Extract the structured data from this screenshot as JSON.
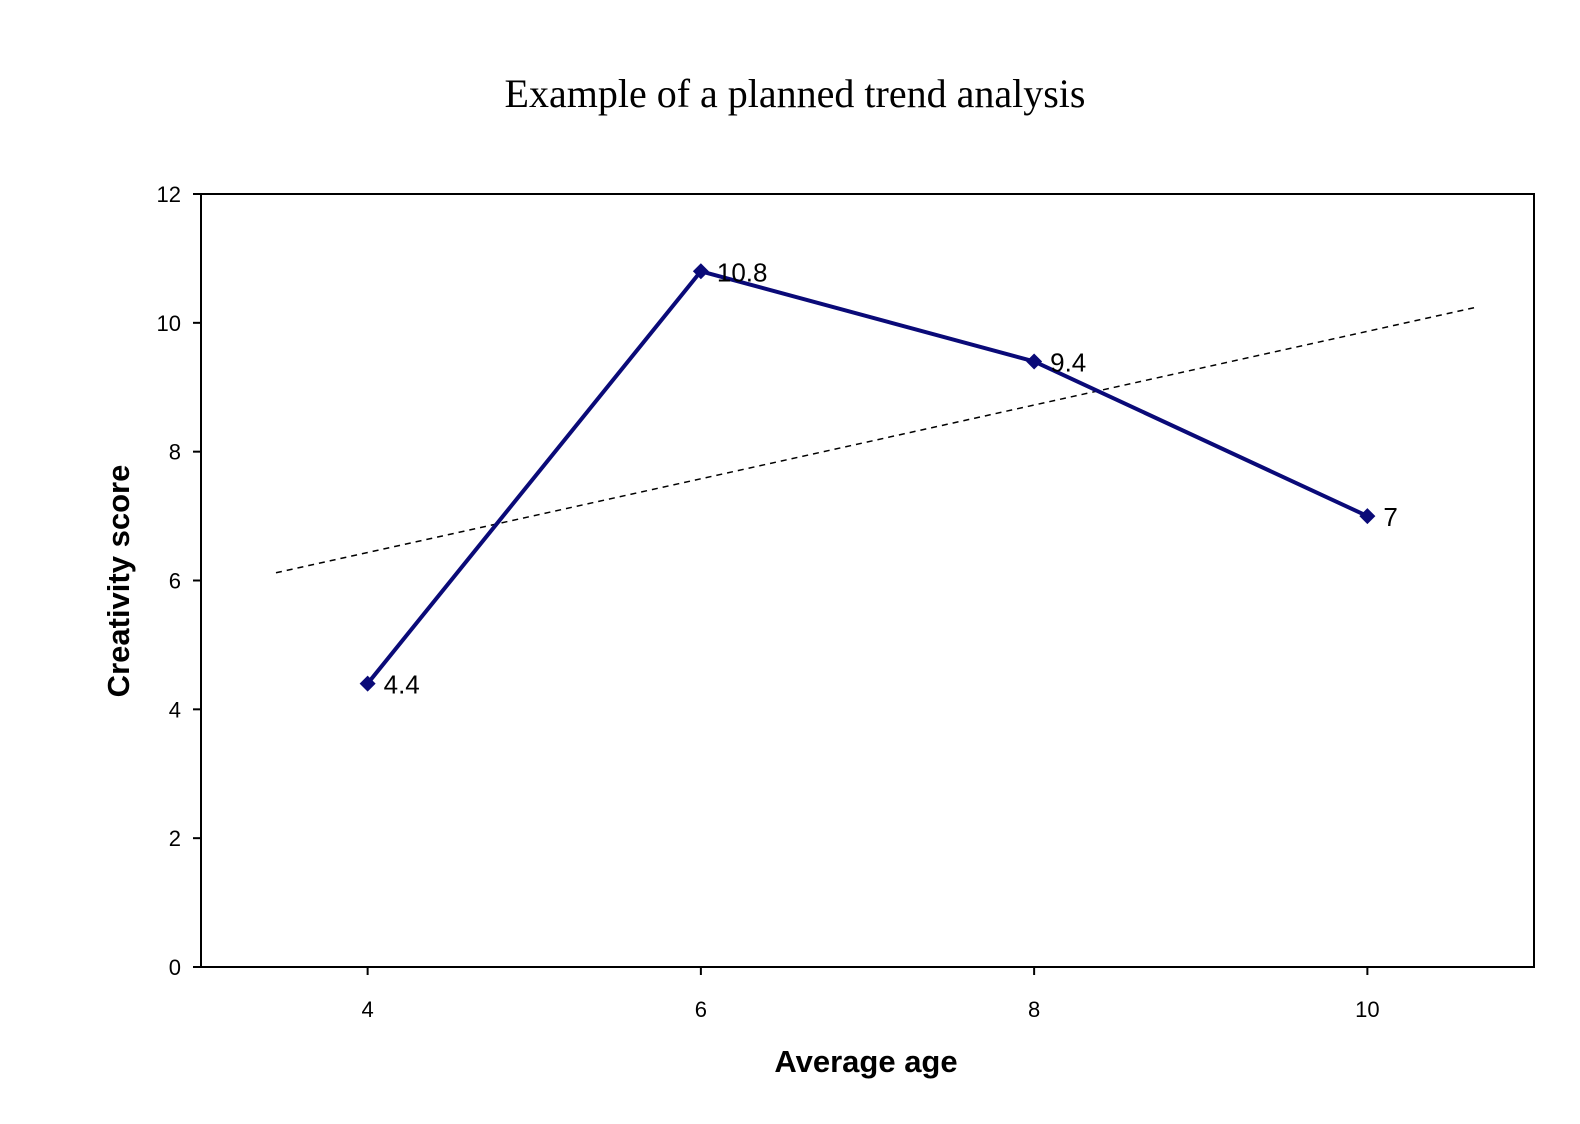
{
  "chart_data": {
    "type": "line",
    "title": "Example of a planned trend analysis",
    "xlabel": "Average age",
    "ylabel": "Creativity score",
    "x": [
      4,
      6,
      8,
      10
    ],
    "xticks": [
      "4",
      "6",
      "8",
      "10"
    ],
    "xlim": [
      3,
      11
    ],
    "ylim": [
      0,
      12
    ],
    "yticks": [
      0,
      2,
      4,
      6,
      8,
      10,
      12
    ],
    "series": [
      {
        "values": [
          4.4,
          10.8,
          9.4,
          7
        ],
        "data_labels": [
          "4.4",
          "10.8",
          "9.4",
          "7"
        ],
        "color": "#0a0a78",
        "marker": "diamond"
      }
    ],
    "trendline": {
      "style": "dashed",
      "color": "#000000",
      "x": [
        3.45,
        10.65
      ],
      "y": [
        6.12,
        10.24
      ]
    },
    "grid": false,
    "legend": "none"
  }
}
